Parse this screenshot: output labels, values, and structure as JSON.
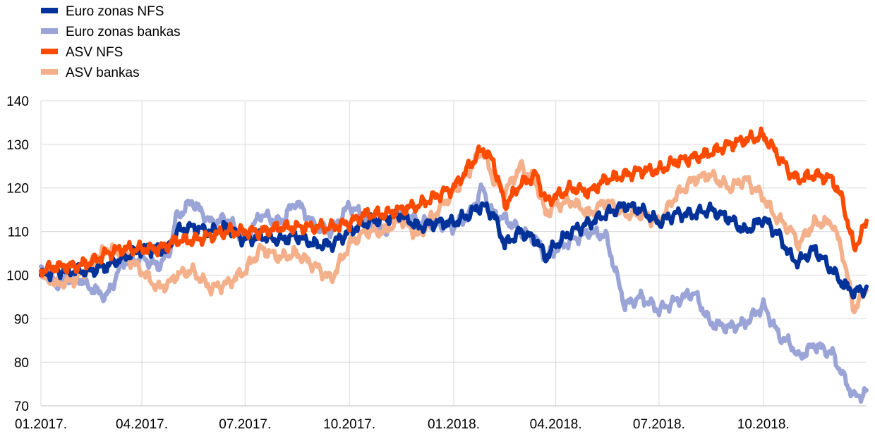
{
  "chart_data": {
    "type": "line",
    "title": "",
    "xlabel": "",
    "ylabel": "",
    "ylim": [
      70,
      140
    ],
    "yticks": [
      70,
      80,
      90,
      100,
      110,
      120,
      130,
      140
    ],
    "xlim": [
      "2017-01-02",
      "2018-12-31"
    ],
    "xticks": [
      {
        "date": "2017-01-01",
        "label": "01.2017."
      },
      {
        "date": "2017-04-01",
        "label": "04.2017."
      },
      {
        "date": "2017-07-01",
        "label": "07.2017."
      },
      {
        "date": "2017-10-01",
        "label": "10.2017."
      },
      {
        "date": "2018-01-01",
        "label": "01.2018."
      },
      {
        "date": "2018-04-01",
        "label": "04.2018."
      },
      {
        "date": "2018-07-01",
        "label": "07.2018."
      },
      {
        "date": "2018-10-01",
        "label": "10.2018."
      }
    ],
    "grid": "vertical-and-horizontal",
    "legend_position": "top-left",
    "series": [
      {
        "name": "Euro zonas NFS",
        "color": "#003299",
        "points": [
          [
            "2017-01-02",
            100
          ],
          [
            "2017-01-16",
            101
          ],
          [
            "2017-02-01",
            101
          ],
          [
            "2017-02-15",
            101
          ],
          [
            "2017-03-01",
            102
          ],
          [
            "2017-03-15",
            104
          ],
          [
            "2017-04-01",
            106
          ],
          [
            "2017-04-15",
            106
          ],
          [
            "2017-04-25",
            106
          ],
          [
            "2017-05-01",
            110
          ],
          [
            "2017-05-15",
            111
          ],
          [
            "2017-06-01",
            110
          ],
          [
            "2017-06-15",
            111
          ],
          [
            "2017-07-01",
            108
          ],
          [
            "2017-07-15",
            109
          ],
          [
            "2017-08-01",
            108
          ],
          [
            "2017-08-15",
            109
          ],
          [
            "2017-09-01",
            107
          ],
          [
            "2017-09-15",
            107
          ],
          [
            "2017-10-01",
            110
          ],
          [
            "2017-10-15",
            112
          ],
          [
            "2017-11-01",
            113
          ],
          [
            "2017-11-15",
            114
          ],
          [
            "2017-12-01",
            111
          ],
          [
            "2017-12-15",
            112
          ],
          [
            "2018-01-01",
            112
          ],
          [
            "2018-01-15",
            114
          ],
          [
            "2018-01-26",
            116
          ],
          [
            "2018-02-05",
            114
          ],
          [
            "2018-02-15",
            107
          ],
          [
            "2018-03-01",
            110
          ],
          [
            "2018-03-15",
            108
          ],
          [
            "2018-03-23",
            104
          ],
          [
            "2018-04-01",
            107
          ],
          [
            "2018-04-15",
            110
          ],
          [
            "2018-05-01",
            112
          ],
          [
            "2018-05-15",
            114
          ],
          [
            "2018-06-01",
            116
          ],
          [
            "2018-06-15",
            115
          ],
          [
            "2018-07-01",
            112
          ],
          [
            "2018-07-15",
            114
          ],
          [
            "2018-08-01",
            114
          ],
          [
            "2018-08-15",
            115
          ],
          [
            "2018-09-01",
            113
          ],
          [
            "2018-09-15",
            110
          ],
          [
            "2018-10-01",
            113
          ],
          [
            "2018-10-15",
            109
          ],
          [
            "2018-10-26",
            104
          ],
          [
            "2018-11-01",
            103
          ],
          [
            "2018-11-15",
            106
          ],
          [
            "2018-12-01",
            101
          ],
          [
            "2018-12-10",
            98
          ],
          [
            "2018-12-20",
            96
          ],
          [
            "2018-12-31",
            97
          ]
        ]
      },
      {
        "name": "Euro zonas bankas",
        "color": "#9aa4d6",
        "points": [
          [
            "2017-01-02",
            102
          ],
          [
            "2017-01-16",
            98
          ],
          [
            "2017-02-01",
            100
          ],
          [
            "2017-02-15",
            97
          ],
          [
            "2017-03-01",
            95
          ],
          [
            "2017-03-15",
            103
          ],
          [
            "2017-04-01",
            104
          ],
          [
            "2017-04-15",
            102
          ],
          [
            "2017-04-25",
            105
          ],
          [
            "2017-05-01",
            113
          ],
          [
            "2017-05-15",
            117
          ],
          [
            "2017-06-01",
            112
          ],
          [
            "2017-06-15",
            113
          ],
          [
            "2017-07-01",
            108
          ],
          [
            "2017-07-15",
            114
          ],
          [
            "2017-08-01",
            112
          ],
          [
            "2017-08-15",
            117
          ],
          [
            "2017-09-01",
            111
          ],
          [
            "2017-09-15",
            110
          ],
          [
            "2017-10-01",
            116
          ],
          [
            "2017-10-15",
            113
          ],
          [
            "2017-11-01",
            110
          ],
          [
            "2017-11-15",
            115
          ],
          [
            "2017-12-01",
            112
          ],
          [
            "2017-12-15",
            112
          ],
          [
            "2018-01-01",
            111
          ],
          [
            "2018-01-15",
            114
          ],
          [
            "2018-01-26",
            120
          ],
          [
            "2018-02-05",
            114
          ],
          [
            "2018-02-15",
            113
          ],
          [
            "2018-03-01",
            110
          ],
          [
            "2018-03-15",
            108
          ],
          [
            "2018-03-23",
            104
          ],
          [
            "2018-04-01",
            106
          ],
          [
            "2018-04-15",
            108
          ],
          [
            "2018-05-01",
            110
          ],
          [
            "2018-05-15",
            109
          ],
          [
            "2018-06-01",
            93
          ],
          [
            "2018-06-15",
            95
          ],
          [
            "2018-07-01",
            92
          ],
          [
            "2018-07-15",
            94
          ],
          [
            "2018-08-01",
            96
          ],
          [
            "2018-08-15",
            89
          ],
          [
            "2018-09-01",
            88
          ],
          [
            "2018-09-15",
            89
          ],
          [
            "2018-10-01",
            93
          ],
          [
            "2018-10-15",
            86
          ],
          [
            "2018-10-26",
            84
          ],
          [
            "2018-11-01",
            81
          ],
          [
            "2018-11-15",
            84
          ],
          [
            "2018-12-01",
            82
          ],
          [
            "2018-12-10",
            77
          ],
          [
            "2018-12-20",
            72
          ],
          [
            "2018-12-31",
            73
          ]
        ]
      },
      {
        "name": "ASV NFS",
        "color": "#ff4b00",
        "points": [
          [
            "2017-01-02",
            101
          ],
          [
            "2017-01-16",
            102
          ],
          [
            "2017-02-01",
            102
          ],
          [
            "2017-02-15",
            103
          ],
          [
            "2017-03-01",
            105
          ],
          [
            "2017-03-15",
            106
          ],
          [
            "2017-04-01",
            106
          ],
          [
            "2017-04-15",
            106
          ],
          [
            "2017-04-25",
            107
          ],
          [
            "2017-05-01",
            108
          ],
          [
            "2017-05-15",
            108
          ],
          [
            "2017-06-01",
            109
          ],
          [
            "2017-06-15",
            110
          ],
          [
            "2017-07-01",
            110
          ],
          [
            "2017-07-15",
            110
          ],
          [
            "2017-08-01",
            111
          ],
          [
            "2017-08-15",
            111
          ],
          [
            "2017-09-01",
            111
          ],
          [
            "2017-09-15",
            111
          ],
          [
            "2017-10-01",
            112
          ],
          [
            "2017-10-15",
            114
          ],
          [
            "2017-11-01",
            114
          ],
          [
            "2017-11-15",
            115
          ],
          [
            "2017-12-01",
            116
          ],
          [
            "2017-12-15",
            118
          ],
          [
            "2018-01-01",
            120
          ],
          [
            "2018-01-15",
            125
          ],
          [
            "2018-01-26",
            129
          ],
          [
            "2018-02-05",
            126
          ],
          [
            "2018-02-15",
            116
          ],
          [
            "2018-03-01",
            121
          ],
          [
            "2018-03-15",
            123
          ],
          [
            "2018-03-23",
            117
          ],
          [
            "2018-04-01",
            118
          ],
          [
            "2018-04-15",
            120
          ],
          [
            "2018-05-01",
            119
          ],
          [
            "2018-05-15",
            122
          ],
          [
            "2018-06-01",
            123
          ],
          [
            "2018-06-15",
            124
          ],
          [
            "2018-07-01",
            124
          ],
          [
            "2018-07-15",
            126
          ],
          [
            "2018-08-01",
            127
          ],
          [
            "2018-08-15",
            128
          ],
          [
            "2018-09-01",
            130
          ],
          [
            "2018-09-15",
            131
          ],
          [
            "2018-10-01",
            132
          ],
          [
            "2018-10-10",
            129
          ],
          [
            "2018-10-26",
            123
          ],
          [
            "2018-11-01",
            122
          ],
          [
            "2018-11-15",
            123
          ],
          [
            "2018-12-01",
            122
          ],
          [
            "2018-12-10",
            117
          ],
          [
            "2018-12-20",
            106
          ],
          [
            "2018-12-31",
            112
          ]
        ]
      },
      {
        "name": "ASV bankas",
        "color": "#f4b08a",
        "points": [
          [
            "2017-01-02",
            100
          ],
          [
            "2017-01-16",
            98
          ],
          [
            "2017-02-01",
            99
          ],
          [
            "2017-02-15",
            102
          ],
          [
            "2017-03-01",
            106
          ],
          [
            "2017-03-15",
            105
          ],
          [
            "2017-04-01",
            101
          ],
          [
            "2017-04-15",
            97
          ],
          [
            "2017-04-25",
            98
          ],
          [
            "2017-05-01",
            100
          ],
          [
            "2017-05-15",
            101
          ],
          [
            "2017-06-01",
            97
          ],
          [
            "2017-06-15",
            98
          ],
          [
            "2017-07-01",
            101
          ],
          [
            "2017-07-15",
            106
          ],
          [
            "2017-08-01",
            104
          ],
          [
            "2017-08-15",
            105
          ],
          [
            "2017-09-01",
            102
          ],
          [
            "2017-09-15",
            99
          ],
          [
            "2017-10-01",
            107
          ],
          [
            "2017-10-15",
            110
          ],
          [
            "2017-11-01",
            110
          ],
          [
            "2017-11-15",
            113
          ],
          [
            "2017-12-01",
            109
          ],
          [
            "2017-12-15",
            114
          ],
          [
            "2018-01-01",
            119
          ],
          [
            "2018-01-15",
            124
          ],
          [
            "2018-01-26",
            129
          ],
          [
            "2018-02-05",
            122
          ],
          [
            "2018-02-15",
            119
          ],
          [
            "2018-03-01",
            125
          ],
          [
            "2018-03-15",
            121
          ],
          [
            "2018-03-23",
            114
          ],
          [
            "2018-04-01",
            116
          ],
          [
            "2018-04-15",
            117
          ],
          [
            "2018-05-01",
            114
          ],
          [
            "2018-05-15",
            117
          ],
          [
            "2018-06-01",
            114
          ],
          [
            "2018-06-15",
            114
          ],
          [
            "2018-07-01",
            112
          ],
          [
            "2018-07-15",
            118
          ],
          [
            "2018-08-01",
            122
          ],
          [
            "2018-08-15",
            123
          ],
          [
            "2018-09-01",
            120
          ],
          [
            "2018-09-15",
            122
          ],
          [
            "2018-10-01",
            118
          ],
          [
            "2018-10-10",
            114
          ],
          [
            "2018-10-26",
            110
          ],
          [
            "2018-11-01",
            107
          ],
          [
            "2018-11-15",
            112
          ],
          [
            "2018-12-01",
            112
          ],
          [
            "2018-12-10",
            105
          ],
          [
            "2018-12-20",
            92
          ],
          [
            "2018-12-31",
            97
          ]
        ]
      }
    ]
  }
}
